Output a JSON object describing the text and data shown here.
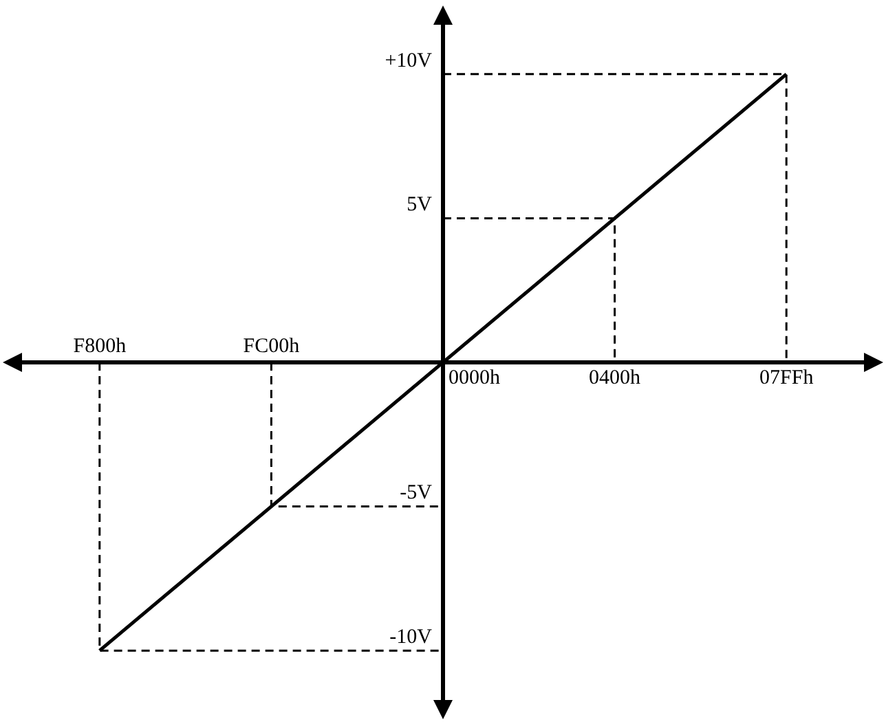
{
  "chart_data": {
    "type": "line",
    "categories": [
      "F800h",
      "FC00h",
      "0000h",
      "0400h",
      "07FFh"
    ],
    "ylim": [
      -12,
      12
    ],
    "yticks": [
      {
        "value": -10,
        "label": "-10V"
      },
      {
        "value": -5,
        "label": "-5V"
      },
      {
        "value": 5,
        "label": "5V"
      },
      {
        "value": 10,
        "label": "+10V"
      }
    ],
    "grid": false,
    "legend": false,
    "marker": "none",
    "series": [
      {
        "color": "#000000",
        "x": [
          "F800h",
          "07FFh"
        ],
        "values": [
          -10,
          10
        ],
        "line_style": "solid"
      },
      {
        "color": "#000000",
        "x": [
          "0000h",
          "07FFh",
          "07FFh"
        ],
        "values": [
          10,
          10,
          0
        ],
        "line_style": "dashed"
      },
      {
        "color": "#000000",
        "x": [
          "0000h",
          "0400h",
          "0400h"
        ],
        "values": [
          5,
          5,
          0
        ],
        "line_style": "dashed"
      },
      {
        "color": "#000000",
        "x": [
          "FC00h",
          "FC00h",
          "0000h"
        ],
        "values": [
          0,
          -5,
          -5
        ],
        "line_style": "dashed"
      },
      {
        "color": "#000000",
        "x": [
          "F800h",
          "F800h",
          "0000h"
        ],
        "values": [
          0,
          -10,
          -10
        ],
        "line_style": "dashed"
      }
    ]
  }
}
